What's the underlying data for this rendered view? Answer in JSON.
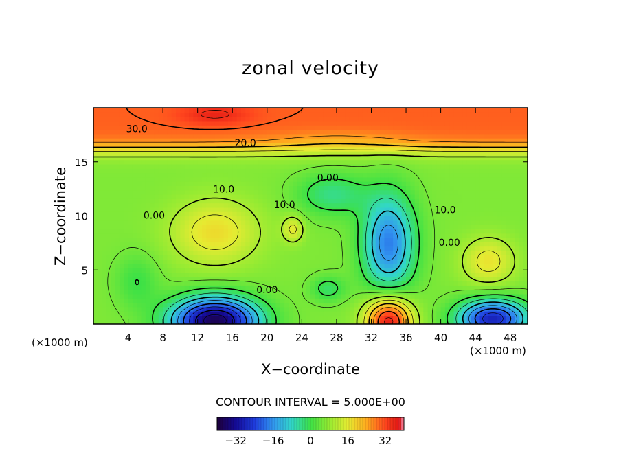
{
  "chart_data": {
    "type": "heatmap",
    "title": "zonal velocity",
    "xlabel": "X−coordinate",
    "ylabel": "Z−coordinate",
    "x_unit_left": "(×1000 m)",
    "x_unit_right": "(×1000 m)",
    "xlim": [
      0,
      50
    ],
    "ylim": [
      0,
      20
    ],
    "x_ticks": [
      4,
      8,
      12,
      16,
      20,
      24,
      28,
      32,
      36,
      40,
      44,
      48
    ],
    "y_ticks": [
      5,
      10,
      15
    ],
    "contour_interval_text": "CONTOUR INTERVAL = 5.000E+00",
    "contour_interval": 5,
    "value_range": [
      -40,
      40
    ],
    "contour_labels": [
      {
        "text": "30.0",
        "x": 5,
        "z": 18
      },
      {
        "text": "20.0",
        "x": 17.5,
        "z": 16.7
      },
      {
        "text": "10.0",
        "x": 15,
        "z": 12.4
      },
      {
        "text": "0.00",
        "x": 7,
        "z": 10
      },
      {
        "text": "10.0",
        "x": 22,
        "z": 11
      },
      {
        "text": "0.00",
        "x": 27,
        "z": 13.5
      },
      {
        "text": "10.0",
        "x": 40.5,
        "z": 10.5
      },
      {
        "text": "0.00",
        "x": 41,
        "z": 7.5
      },
      {
        "text": "0.00",
        "x": 20,
        "z": 3.1
      }
    ],
    "features": [
      {
        "kind": "max",
        "x": 14,
        "z": 8.5,
        "value": 18
      },
      {
        "kind": "max",
        "x": 34,
        "z": 0.3,
        "value": 38
      },
      {
        "kind": "max",
        "x": 45,
        "z": 5.8,
        "value": 17
      },
      {
        "kind": "max",
        "x": 14,
        "z": 19.3,
        "value": 34
      },
      {
        "kind": "min",
        "x": 34,
        "z": 7.5,
        "value": -18
      },
      {
        "kind": "min",
        "x": 14,
        "z": 0.3,
        "value": -38
      },
      {
        "kind": "min",
        "x": 46,
        "z": 0.5,
        "value": -28
      }
    ],
    "colorbar": {
      "tick_labels": [
        "−32",
        "−16",
        "0",
        "16",
        "32"
      ],
      "tick_values": [
        -32,
        -16,
        0,
        16,
        32
      ],
      "colors": [
        "#2a0050",
        "#1a0a9a",
        "#1f3fd8",
        "#3aa0f0",
        "#3dd6c8",
        "#3ee860",
        "#8cf03c",
        "#e8f03a",
        "#ffb020",
        "#ff5020",
        "#e01818",
        "#ff9fc0"
      ]
    }
  }
}
